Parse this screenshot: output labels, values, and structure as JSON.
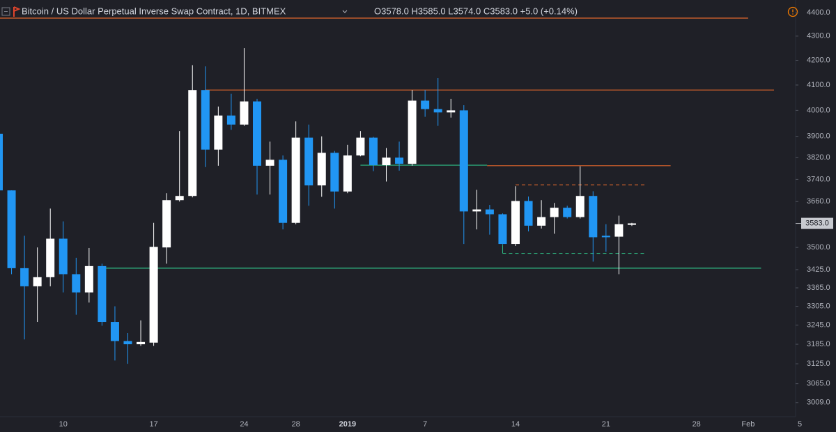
{
  "chart_data": {
    "type": "candlestick",
    "title": "Bitcoin / US Dollar Perpetual Inverse Swap Contract, 1D, BITMEX",
    "ohlc_legend": "O3578.0 H3585.0 L3574.0 C3583.0 +5.0 (+0.14%)",
    "categories": [
      null,
      null,
      null,
      null,
      null,
      "10",
      null,
      null,
      null,
      null,
      null,
      null,
      "17",
      null,
      null,
      null,
      null,
      null,
      null,
      "24",
      null,
      null,
      null,
      "28",
      null,
      null,
      null,
      "2019",
      null,
      null,
      null,
      null,
      null,
      "7",
      null,
      null,
      null,
      null,
      null,
      null,
      "14",
      null,
      null,
      null,
      null,
      null,
      null,
      "21",
      null,
      null,
      null,
      null,
      null,
      null,
      "28",
      null,
      null,
      null,
      "Feb",
      null,
      null,
      null,
      "5"
    ],
    "open": [
      3910,
      3700,
      3430,
      3370,
      3400,
      3530,
      3410,
      3350,
      3437,
      3255,
      3195,
      3185,
      3190,
      3500,
      3665,
      3680,
      4080,
      3850,
      3980,
      3945,
      4035,
      3790,
      3812,
      3585,
      3895,
      3718,
      3838,
      3696,
      3828,
      3895,
      3792,
      3820,
      3797,
      4038,
      4005,
      3992,
      4000,
      3625,
      3632,
      3615,
      3512,
      3662,
      3575,
      3605,
      3638,
      3605,
      3680,
      3540,
      3537,
      3578,
      null,
      null,
      null,
      null,
      null,
      null,
      null,
      null,
      null,
      null,
      null,
      null,
      null
    ],
    "high": [
      3920,
      3700,
      3540,
      3500,
      3635,
      3590,
      3465,
      3498,
      3445,
      3305,
      3220,
      3260,
      3585,
      3690,
      3920,
      4180,
      4175,
      4015,
      4065,
      4250,
      4045,
      3880,
      3828,
      3957,
      3945,
      3900,
      3845,
      3868,
      3920,
      3898,
      3856,
      3880,
      4080,
      4080,
      4128,
      4045,
      4020,
      3702,
      3648,
      3618,
      3715,
      3678,
      3665,
      3655,
      3645,
      3788,
      3697,
      3580,
      3610,
      3585,
      null,
      null,
      null,
      null,
      null,
      null,
      null,
      null,
      null,
      null,
      null,
      null,
      null
    ],
    "low": [
      3690,
      3410,
      3200,
      3255,
      3370,
      3350,
      3278,
      3317,
      3243,
      3135,
      3125,
      3180,
      3180,
      3445,
      3660,
      3675,
      3785,
      3790,
      3925,
      3940,
      3685,
      3685,
      3562,
      3580,
      3645,
      3677,
      3635,
      3690,
      3825,
      3770,
      3732,
      3772,
      3790,
      3975,
      3940,
      3972,
      3512,
      3562,
      3544,
      3510,
      3505,
      3555,
      3565,
      3547,
      3600,
      3600,
      3452,
      3485,
      3410,
      3574,
      null,
      null,
      null,
      null,
      null,
      null,
      null,
      null,
      null,
      null,
      null,
      null,
      null
    ],
    "close": [
      3700,
      3430,
      3370,
      3400,
      3530,
      3410,
      3350,
      3437,
      3255,
      3195,
      3185,
      3192,
      3502,
      3665,
      3680,
      4080,
      3850,
      3980,
      3945,
      4035,
      3790,
      3812,
      3585,
      3895,
      3718,
      3838,
      3696,
      3828,
      3895,
      3792,
      3820,
      3797,
      4038,
      4005,
      3992,
      4000,
      3625,
      3632,
      3615,
      3512,
      3662,
      3575,
      3605,
      3638,
      3605,
      3680,
      3535,
      3535,
      3580,
      3583,
      null,
      null,
      null,
      null,
      null,
      null,
      null,
      null,
      null,
      null,
      null,
      null,
      null
    ],
    "up_color": "#ffffff",
    "down_color": "#2196f3",
    "log_scale": true,
    "ylim": [
      2964,
      4454
    ],
    "yticks": [
      {
        "value": 3009,
        "label": "3009.0"
      },
      {
        "value": 3065,
        "label": "3065.0"
      },
      {
        "value": 3125,
        "label": "3125.0"
      },
      {
        "value": 3185,
        "label": "3185.0"
      },
      {
        "value": 3245,
        "label": "3245.0"
      },
      {
        "value": 3305,
        "label": "3305.0"
      },
      {
        "value": 3365,
        "label": "3365.0"
      },
      {
        "value": 3425,
        "label": "3425.0"
      },
      {
        "value": 3500,
        "label": "3500.0"
      },
      {
        "value": 3660,
        "label": "3660.0"
      },
      {
        "value": 3740,
        "label": "3740.0"
      },
      {
        "value": 3820,
        "label": "3820.0"
      },
      {
        "value": 3900,
        "label": "3900.0"
      },
      {
        "value": 4000,
        "label": "4000.0"
      },
      {
        "value": 4100,
        "label": "4100.0"
      },
      {
        "value": 4200,
        "label": "4200.0"
      },
      {
        "value": 4300,
        "label": "4300.0"
      },
      {
        "value": 4400,
        "label": "4400.0"
      }
    ],
    "last_price": {
      "value": 3583,
      "label": "3583.0"
    },
    "levels": [
      {
        "price": 4376,
        "from": -1,
        "to": 58,
        "color": "#e0662c",
        "dashed": false
      },
      {
        "price": 4080,
        "from": 16,
        "to": 60,
        "color": "#e0662c",
        "dashed": false
      },
      {
        "price": 3790,
        "from": 37.8,
        "to": 52,
        "color": "#e0662c",
        "dashed": false
      },
      {
        "price": 3430,
        "from": 8,
        "to": 59,
        "color": "#2ebd85",
        "dashed": false
      },
      {
        "price": 3792,
        "from": 28,
        "to": 37.8,
        "color": "#2ebd85",
        "dashed": false
      },
      {
        "price": 3720,
        "from": 40,
        "to": 50,
        "color": "#e0662c",
        "dashed": true
      },
      {
        "price": 3480,
        "from": 39,
        "to": 50,
        "color": "#2ebd85",
        "dashed": true
      }
    ]
  }
}
